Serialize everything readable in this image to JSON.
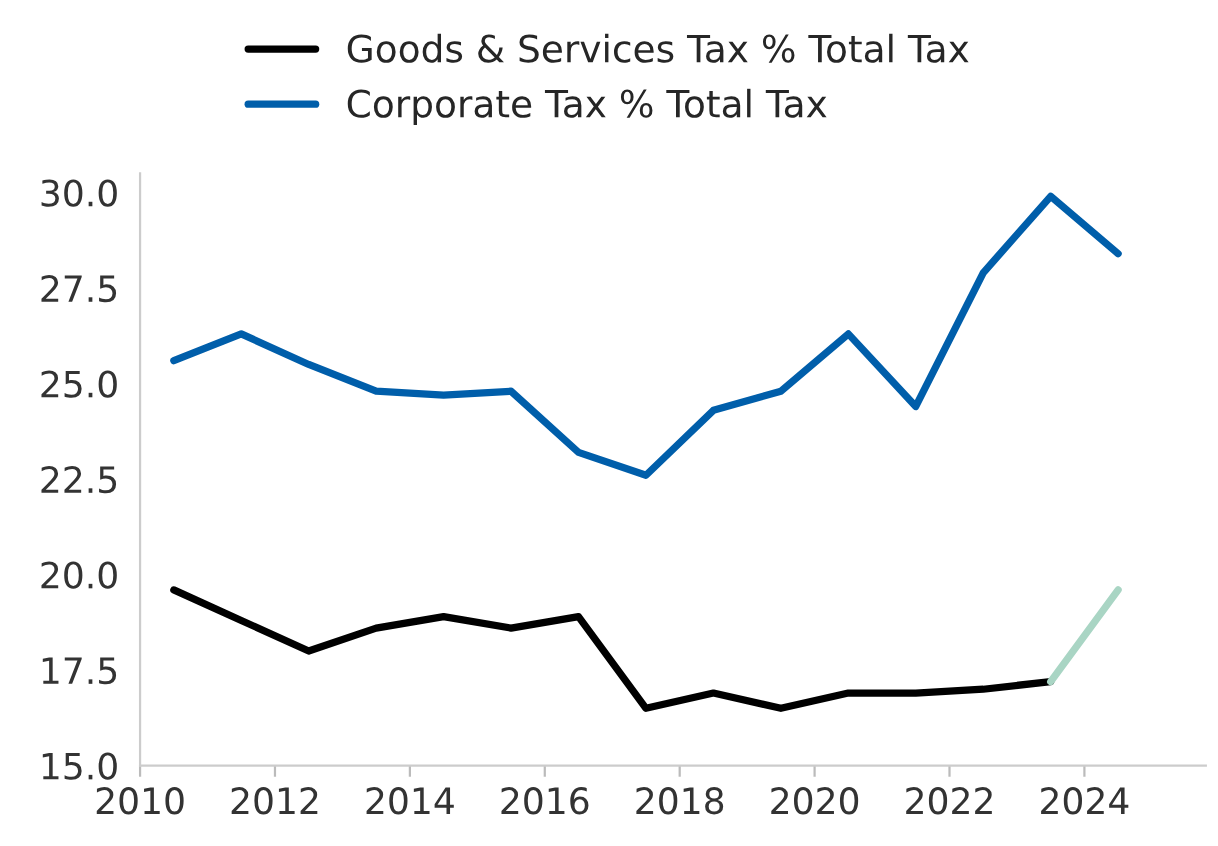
{
  "chart_data": {
    "type": "line",
    "x": [
      2010.5,
      2011.5,
      2012.5,
      2013.5,
      2014.5,
      2015.5,
      2016.5,
      2017.5,
      2018.5,
      2019.5,
      2020.5,
      2021.5,
      2022.5,
      2023.5,
      2024.5
    ],
    "series": [
      {
        "name": "Goods & Services Tax % Total Tax",
        "color": "#000000",
        "values": [
          19.6,
          18.8,
          18.0,
          18.6,
          18.9,
          18.6,
          18.9,
          16.5,
          16.9,
          16.5,
          16.9,
          16.9,
          17.0,
          17.2,
          null
        ]
      },
      {
        "name": "Corporate Tax % Total Tax",
        "color": "#005eaa",
        "values": [
          25.6,
          26.3,
          25.5,
          24.8,
          24.7,
          24.8,
          23.2,
          22.6,
          24.3,
          24.8,
          26.3,
          24.4,
          27.9,
          29.9,
          28.4
        ]
      },
      {
        "color": "#a9d5c4",
        "values": [
          null,
          null,
          null,
          null,
          null,
          null,
          null,
          null,
          null,
          null,
          null,
          null,
          null,
          17.2,
          19.6
        ]
      }
    ],
    "xlim": [
      2010,
      2025.8
    ],
    "xticks": [
      2010,
      2012,
      2014,
      2016,
      2018,
      2020,
      2022,
      2024
    ],
    "ylim": [
      15,
      30.5
    ],
    "yticks": [
      {
        "value": 15,
        "label": "15.0"
      },
      {
        "value": 17.5,
        "label": "17.5"
      },
      {
        "value": 20,
        "label": "20.0"
      },
      {
        "value": 22.5,
        "label": "22.5"
      },
      {
        "value": 25,
        "label": "25.0"
      },
      {
        "value": 27.5,
        "label": "27.5"
      },
      {
        "value": 30,
        "label": "30.0"
      }
    ],
    "legend": "top",
    "grid": false,
    "line_style": "solid",
    "marker": "none"
  }
}
